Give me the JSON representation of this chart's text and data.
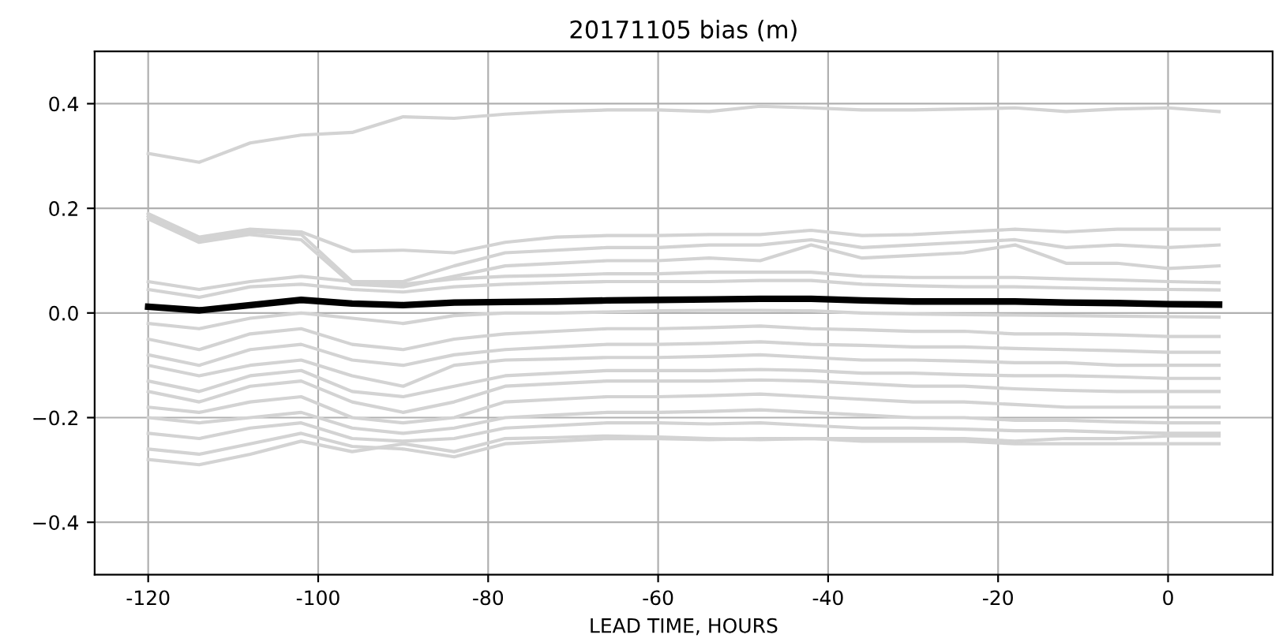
{
  "chart_data": {
    "type": "line",
    "title": "20171105 bias (m)",
    "xlabel": "LEAD TIME, HOURS",
    "x": [
      -120,
      -114,
      -108,
      -102,
      -96,
      -90,
      -84,
      -78,
      -72,
      -66,
      -60,
      -54,
      -48,
      -42,
      -36,
      -30,
      -24,
      -18,
      -12,
      -6,
      0,
      6
    ],
    "xlim": [
      -126.3,
      12.3
    ],
    "ylim": [
      -0.5,
      0.5
    ],
    "xticks": [
      -120,
      -100,
      -80,
      -60,
      -40,
      -20,
      0
    ],
    "yticks": [
      {
        "value": -0.4,
        "label": "−0.4"
      },
      {
        "value": -0.2,
        "label": "−0.2"
      },
      {
        "value": 0.0,
        "label": "0.0"
      },
      {
        "value": 0.2,
        "label": "0.2"
      },
      {
        "value": 0.4,
        "label": "0.4"
      }
    ],
    "grid": true,
    "line_style": "solid",
    "marker": "none",
    "series": [
      {
        "color": "#d3d3d3",
        "values": [
          0.305,
          0.288,
          0.325,
          0.34,
          0.345,
          0.375,
          0.372,
          0.38,
          0.385,
          0.388,
          0.388,
          0.385,
          0.395,
          0.392,
          0.388,
          0.388,
          0.39,
          0.392,
          0.385,
          0.39,
          0.392,
          0.385
        ]
      },
      {
        "color": "#d3d3d3",
        "values": [
          0.19,
          0.145,
          0.16,
          0.155,
          0.118,
          0.12,
          0.115,
          0.135,
          0.145,
          0.148,
          0.148,
          0.15,
          0.15,
          0.158,
          0.148,
          0.15,
          0.155,
          0.16,
          0.155,
          0.16,
          0.16,
          0.16
        ]
      },
      {
        "color": "#d3d3d3",
        "values": [
          0.185,
          0.14,
          0.155,
          0.15,
          0.06,
          0.06,
          0.09,
          0.115,
          0.12,
          0.125,
          0.125,
          0.13,
          0.13,
          0.14,
          0.125,
          0.13,
          0.135,
          0.14,
          0.125,
          0.13,
          0.125,
          0.13
        ]
      },
      {
        "color": "#d3d3d3",
        "values": [
          0.18,
          0.135,
          0.15,
          0.14,
          0.055,
          0.05,
          0.07,
          0.09,
          0.095,
          0.1,
          0.1,
          0.105,
          0.1,
          0.13,
          0.105,
          0.11,
          0.115,
          0.13,
          0.095,
          0.095,
          0.085,
          0.09
        ]
      },
      {
        "color": "#d3d3d3",
        "values": [
          0.06,
          0.045,
          0.06,
          0.07,
          0.06,
          0.055,
          0.065,
          0.07,
          0.072,
          0.075,
          0.075,
          0.078,
          0.078,
          0.078,
          0.07,
          0.068,
          0.068,
          0.068,
          0.065,
          0.063,
          0.06,
          0.058
        ]
      },
      {
        "color": "#d3d3d3",
        "values": [
          0.045,
          0.03,
          0.05,
          0.055,
          0.045,
          0.04,
          0.05,
          0.055,
          0.058,
          0.06,
          0.06,
          0.06,
          0.062,
          0.062,
          0.055,
          0.052,
          0.05,
          0.05,
          0.048,
          0.046,
          0.045,
          0.044
        ]
      },
      {
        "color": "#d3d3d3",
        "values": [
          -0.02,
          -0.03,
          -0.01,
          0.0,
          -0.01,
          -0.02,
          -0.005,
          -0.0,
          0.0,
          0.002,
          0.004,
          0.005,
          0.005,
          0.004,
          0.0,
          -0.002,
          -0.003,
          -0.004,
          -0.005,
          -0.006,
          -0.007,
          -0.008
        ]
      },
      {
        "color": "#d3d3d3",
        "values": [
          -0.05,
          -0.07,
          -0.04,
          -0.03,
          -0.06,
          -0.07,
          -0.05,
          -0.04,
          -0.035,
          -0.03,
          -0.03,
          -0.028,
          -0.025,
          -0.03,
          -0.032,
          -0.035,
          -0.035,
          -0.04,
          -0.04,
          -0.042,
          -0.045,
          -0.045
        ]
      },
      {
        "color": "#d3d3d3",
        "values": [
          -0.08,
          -0.1,
          -0.07,
          -0.06,
          -0.09,
          -0.1,
          -0.08,
          -0.07,
          -0.065,
          -0.06,
          -0.06,
          -0.058,
          -0.055,
          -0.06,
          -0.062,
          -0.065,
          -0.065,
          -0.068,
          -0.07,
          -0.072,
          -0.075,
          -0.075
        ]
      },
      {
        "color": "#d3d3d3",
        "values": [
          -0.1,
          -0.12,
          -0.1,
          -0.09,
          -0.12,
          -0.14,
          -0.1,
          -0.09,
          -0.088,
          -0.085,
          -0.085,
          -0.083,
          -0.08,
          -0.085,
          -0.09,
          -0.09,
          -0.092,
          -0.095,
          -0.095,
          -0.1,
          -0.1,
          -0.1
        ]
      },
      {
        "color": "#d3d3d3",
        "values": [
          -0.13,
          -0.15,
          -0.12,
          -0.11,
          -0.15,
          -0.16,
          -0.14,
          -0.12,
          -0.115,
          -0.11,
          -0.11,
          -0.11,
          -0.108,
          -0.11,
          -0.115,
          -0.115,
          -0.118,
          -0.12,
          -0.12,
          -0.122,
          -0.125,
          -0.125
        ]
      },
      {
        "color": "#d3d3d3",
        "values": [
          -0.15,
          -0.17,
          -0.14,
          -0.13,
          -0.17,
          -0.19,
          -0.17,
          -0.14,
          -0.135,
          -0.13,
          -0.13,
          -0.13,
          -0.128,
          -0.13,
          -0.135,
          -0.14,
          -0.14,
          -0.145,
          -0.148,
          -0.15,
          -0.15,
          -0.15
        ]
      },
      {
        "color": "#d3d3d3",
        "values": [
          -0.18,
          -0.19,
          -0.17,
          -0.16,
          -0.2,
          -0.21,
          -0.2,
          -0.17,
          -0.165,
          -0.16,
          -0.16,
          -0.158,
          -0.155,
          -0.16,
          -0.165,
          -0.17,
          -0.17,
          -0.175,
          -0.18,
          -0.18,
          -0.18,
          -0.18
        ]
      },
      {
        "color": "#d3d3d3",
        "values": [
          -0.2,
          -0.21,
          -0.2,
          -0.19,
          -0.22,
          -0.23,
          -0.22,
          -0.2,
          -0.195,
          -0.19,
          -0.19,
          -0.188,
          -0.185,
          -0.19,
          -0.195,
          -0.2,
          -0.2,
          -0.205,
          -0.205,
          -0.208,
          -0.21,
          -0.21
        ]
      },
      {
        "color": "#d3d3d3",
        "values": [
          -0.23,
          -0.24,
          -0.22,
          -0.21,
          -0.24,
          -0.245,
          -0.24,
          -0.22,
          -0.215,
          -0.21,
          -0.21,
          -0.212,
          -0.21,
          -0.215,
          -0.22,
          -0.22,
          -0.222,
          -0.225,
          -0.225,
          -0.228,
          -0.23,
          -0.23
        ]
      },
      {
        "color": "#d3d3d3",
        "values": [
          -0.26,
          -0.27,
          -0.25,
          -0.23,
          -0.255,
          -0.26,
          -0.275,
          -0.25,
          -0.245,
          -0.24,
          -0.24,
          -0.242,
          -0.24,
          -0.24,
          -0.245,
          -0.245,
          -0.245,
          -0.25,
          -0.25,
          -0.25,
          -0.25,
          -0.25
        ]
      },
      {
        "color": "#d3d3d3",
        "values": [
          -0.28,
          -0.29,
          -0.27,
          -0.245,
          -0.265,
          -0.25,
          -0.265,
          -0.24,
          -0.238,
          -0.235,
          -0.237,
          -0.24,
          -0.242,
          -0.24,
          -0.24,
          -0.24,
          -0.24,
          -0.245,
          -0.24,
          -0.24,
          -0.235,
          -0.235
        ]
      },
      {
        "color": "#000000",
        "values": [
          0.012,
          0.005,
          0.015,
          0.025,
          0.018,
          0.015,
          0.02,
          0.021,
          0.022,
          0.024,
          0.025,
          0.026,
          0.027,
          0.027,
          0.024,
          0.022,
          0.022,
          0.022,
          0.02,
          0.019,
          0.017,
          0.016
        ]
      }
    ]
  }
}
